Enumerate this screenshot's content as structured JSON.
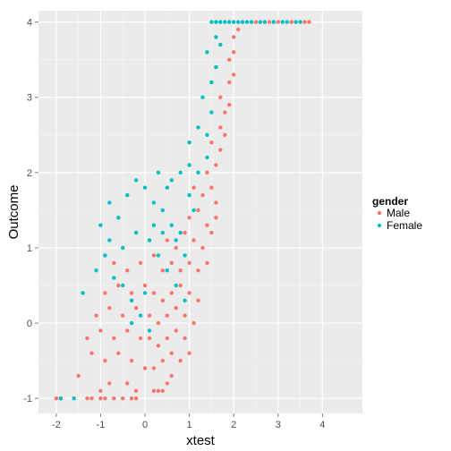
{
  "chart_data": {
    "type": "scatter",
    "title": "",
    "xlabel": "xtest",
    "ylabel": "Outcome",
    "xlim": [
      -2.4,
      4.9
    ],
    "ylim": [
      -1.2,
      4.15
    ],
    "x_ticks": [
      -2,
      -1,
      0,
      1,
      2,
      3,
      4
    ],
    "y_ticks": [
      -1,
      0,
      1,
      2,
      3,
      4
    ],
    "x_tick_labels": [
      "-2",
      "-1",
      "0",
      "1",
      "2",
      "3",
      "4"
    ],
    "y_tick_labels": [
      "-1",
      "0",
      "1",
      "2",
      "3",
      "4"
    ],
    "grid": true,
    "legend_position": "right",
    "legend": {
      "title": "gender",
      "entries": [
        "Male",
        "Female"
      ]
    },
    "colors": {
      "Male": "#F8766D",
      "Female": "#00BFC4",
      "panel": "#EBEBEB",
      "grid_major": "#FFFFFF",
      "grid_minor": "#F5F5F5"
    },
    "series": [
      {
        "name": "Male",
        "color": "#F8766D",
        "points": [
          [
            -2.0,
            -1.0
          ],
          [
            -1.9,
            -1.0
          ],
          [
            -1.3,
            -1.0
          ],
          [
            -1.2,
            -1.0
          ],
          [
            -1.0,
            -1.0
          ],
          [
            -0.9,
            -1.0
          ],
          [
            -0.7,
            -1.0
          ],
          [
            -0.5,
            -1.0
          ],
          [
            -0.3,
            -1.0
          ],
          [
            -0.2,
            -1.0
          ],
          [
            -1.5,
            -0.7
          ],
          [
            -1.0,
            -0.9
          ],
          [
            -0.8,
            -0.8
          ],
          [
            -0.4,
            -0.8
          ],
          [
            -0.2,
            -0.9
          ],
          [
            0.2,
            -0.9
          ],
          [
            0.3,
            -0.9
          ],
          [
            0.4,
            -0.9
          ],
          [
            0.5,
            -0.8
          ],
          [
            0.6,
            -0.7
          ],
          [
            -1.2,
            -0.4
          ],
          [
            -0.9,
            -0.5
          ],
          [
            -0.6,
            -0.4
          ],
          [
            -0.3,
            -0.5
          ],
          [
            0.0,
            -0.6
          ],
          [
            0.2,
            -0.6
          ],
          [
            0.4,
            -0.5
          ],
          [
            0.6,
            -0.4
          ],
          [
            0.8,
            -0.5
          ],
          [
            1.0,
            -0.4
          ],
          [
            -1.3,
            -0.2
          ],
          [
            -1.0,
            -0.1
          ],
          [
            -0.7,
            -0.2
          ],
          [
            -0.4,
            -0.1
          ],
          [
            -0.1,
            -0.2
          ],
          [
            0.1,
            -0.2
          ],
          [
            0.3,
            -0.3
          ],
          [
            0.5,
            -0.2
          ],
          [
            0.7,
            -0.1
          ],
          [
            0.9,
            -0.2
          ],
          [
            -1.1,
            0.1
          ],
          [
            -0.8,
            0.2
          ],
          [
            -0.5,
            0.1
          ],
          [
            -0.2,
            0.2
          ],
          [
            0.1,
            0.1
          ],
          [
            0.3,
            0.0
          ],
          [
            0.5,
            0.1
          ],
          [
            0.7,
            0.2
          ],
          [
            0.9,
            0.1
          ],
          [
            1.1,
            0.0
          ],
          [
            -0.9,
            0.4
          ],
          [
            -0.6,
            0.5
          ],
          [
            -0.3,
            0.4
          ],
          [
            0.0,
            0.5
          ],
          [
            0.2,
            0.4
          ],
          [
            0.4,
            0.3
          ],
          [
            0.6,
            0.4
          ],
          [
            0.8,
            0.5
          ],
          [
            1.0,
            0.4
          ],
          [
            1.2,
            0.3
          ],
          [
            -0.7,
            0.8
          ],
          [
            -0.4,
            0.7
          ],
          [
            -0.1,
            0.8
          ],
          [
            0.2,
            0.9
          ],
          [
            0.4,
            0.7
          ],
          [
            0.6,
            0.8
          ],
          [
            0.8,
            0.7
          ],
          [
            1.0,
            0.8
          ],
          [
            1.2,
            0.7
          ],
          [
            1.4,
            0.8
          ],
          [
            0.5,
            1.1
          ],
          [
            0.7,
            1.0
          ],
          [
            0.9,
            1.2
          ],
          [
            1.1,
            1.1
          ],
          [
            1.3,
            1.0
          ],
          [
            1.5,
            1.2
          ],
          [
            1.0,
            1.4
          ],
          [
            1.2,
            1.5
          ],
          [
            1.4,
            1.3
          ],
          [
            1.6,
            1.4
          ],
          [
            1.1,
            1.8
          ],
          [
            1.3,
            1.7
          ],
          [
            1.5,
            1.8
          ],
          [
            1.6,
            1.6
          ],
          [
            1.4,
            2.0
          ],
          [
            1.6,
            2.1
          ],
          [
            1.7,
            2.3
          ],
          [
            1.5,
            2.4
          ],
          [
            1.7,
            2.6
          ],
          [
            1.8,
            2.5
          ],
          [
            1.8,
            2.8
          ],
          [
            1.9,
            2.9
          ],
          [
            1.7,
            3.0
          ],
          [
            1.9,
            3.2
          ],
          [
            2.0,
            3.3
          ],
          [
            1.9,
            3.5
          ],
          [
            2.0,
            3.6
          ],
          [
            2.0,
            3.8
          ],
          [
            2.1,
            3.9
          ],
          [
            2.2,
            4.0
          ],
          [
            2.5,
            4.0
          ],
          [
            2.8,
            4.0
          ],
          [
            3.0,
            4.0
          ],
          [
            3.3,
            4.0
          ],
          [
            3.6,
            4.0
          ],
          [
            3.7,
            4.0
          ]
        ]
      },
      {
        "name": "Female",
        "color": "#00BFC4",
        "points": [
          [
            -1.6,
            -1.0
          ],
          [
            -1.9,
            -1.0
          ],
          [
            -1.4,
            0.4
          ],
          [
            -1.1,
            0.7
          ],
          [
            -0.9,
            0.9
          ],
          [
            -0.7,
            0.6
          ],
          [
            -0.5,
            0.5
          ],
          [
            -0.3,
            0.3
          ],
          [
            -0.1,
            0.1
          ],
          [
            0.1,
            -0.1
          ],
          [
            -1.0,
            1.3
          ],
          [
            -0.8,
            1.6
          ],
          [
            -0.6,
            1.4
          ],
          [
            -0.4,
            1.7
          ],
          [
            -0.2,
            1.9
          ],
          [
            0.0,
            1.8
          ],
          [
            0.2,
            1.6
          ],
          [
            0.4,
            1.5
          ],
          [
            0.6,
            1.3
          ],
          [
            0.8,
            1.2
          ],
          [
            -0.8,
            1.1
          ],
          [
            -0.5,
            1.0
          ],
          [
            -0.2,
            1.2
          ],
          [
            0.1,
            1.1
          ],
          [
            0.3,
            0.9
          ],
          [
            0.5,
            0.7
          ],
          [
            0.7,
            0.5
          ],
          [
            0.9,
            0.3
          ],
          [
            0.2,
            1.3
          ],
          [
            0.5,
            1.8
          ],
          [
            0.3,
            2.0
          ],
          [
            0.6,
            1.9
          ],
          [
            0.8,
            2.0
          ],
          [
            1.0,
            2.1
          ],
          [
            1.2,
            2.0
          ],
          [
            1.4,
            2.2
          ],
          [
            1.0,
            2.4
          ],
          [
            1.2,
            2.6
          ],
          [
            1.4,
            2.5
          ],
          [
            1.5,
            2.8
          ],
          [
            1.3,
            3.0
          ],
          [
            1.5,
            3.2
          ],
          [
            1.6,
            3.4
          ],
          [
            1.4,
            3.6
          ],
          [
            1.6,
            3.8
          ],
          [
            1.7,
            3.7
          ],
          [
            1.5,
            4.0
          ],
          [
            1.6,
            4.0
          ],
          [
            1.7,
            4.0
          ],
          [
            1.8,
            4.0
          ],
          [
            1.9,
            4.0
          ],
          [
            2.0,
            4.0
          ],
          [
            2.1,
            4.0
          ],
          [
            2.2,
            4.0
          ],
          [
            2.3,
            4.0
          ],
          [
            2.4,
            4.0
          ],
          [
            2.6,
            4.0
          ],
          [
            2.7,
            4.0
          ],
          [
            2.9,
            4.0
          ],
          [
            3.1,
            4.0
          ],
          [
            3.2,
            4.0
          ],
          [
            3.4,
            4.0
          ],
          [
            3.5,
            4.0
          ],
          [
            1.0,
            1.7
          ],
          [
            1.1,
            1.5
          ],
          [
            0.7,
            1.1
          ],
          [
            0.9,
            0.9
          ],
          [
            -0.3,
            0.0
          ],
          [
            0.0,
            0.4
          ],
          [
            0.4,
            1.2
          ]
        ]
      }
    ]
  }
}
